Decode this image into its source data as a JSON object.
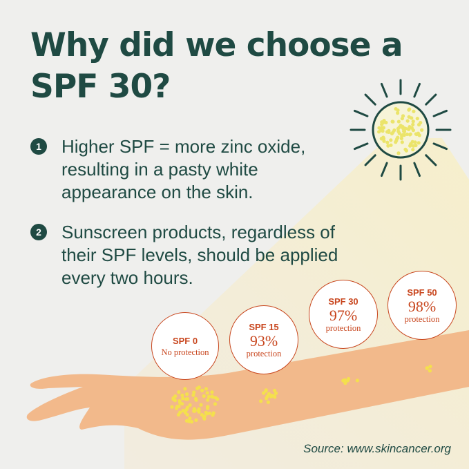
{
  "title": "Why did we choose a SPF 30?",
  "points": [
    {
      "number": "1",
      "text": "Higher SPF = more zinc oxide, resulting in a pasty white appearance on the skin."
    },
    {
      "number": "2",
      "text": "Sunscreen products, regardless of their SPF levels, should be applied every two hours."
    }
  ],
  "badges": [
    {
      "label": "SPF 0",
      "value": "",
      "description": "No protection"
    },
    {
      "label": "SPF 15",
      "value": "93%",
      "description": "protection"
    },
    {
      "label": "SPF 30",
      "value": "97%",
      "description": "protection"
    },
    {
      "label": "SPF 50",
      "value": "98%",
      "description": "protection"
    }
  ],
  "source": "Source: www.skincancer.org",
  "colors": {
    "primary": "#1f4a43",
    "accent": "#c8461e",
    "skin": "#f2b98b",
    "sunscreen_dots": "#f4e04d",
    "background": "#efefed"
  },
  "icons": [
    "sun-icon",
    "arm-illustration"
  ]
}
